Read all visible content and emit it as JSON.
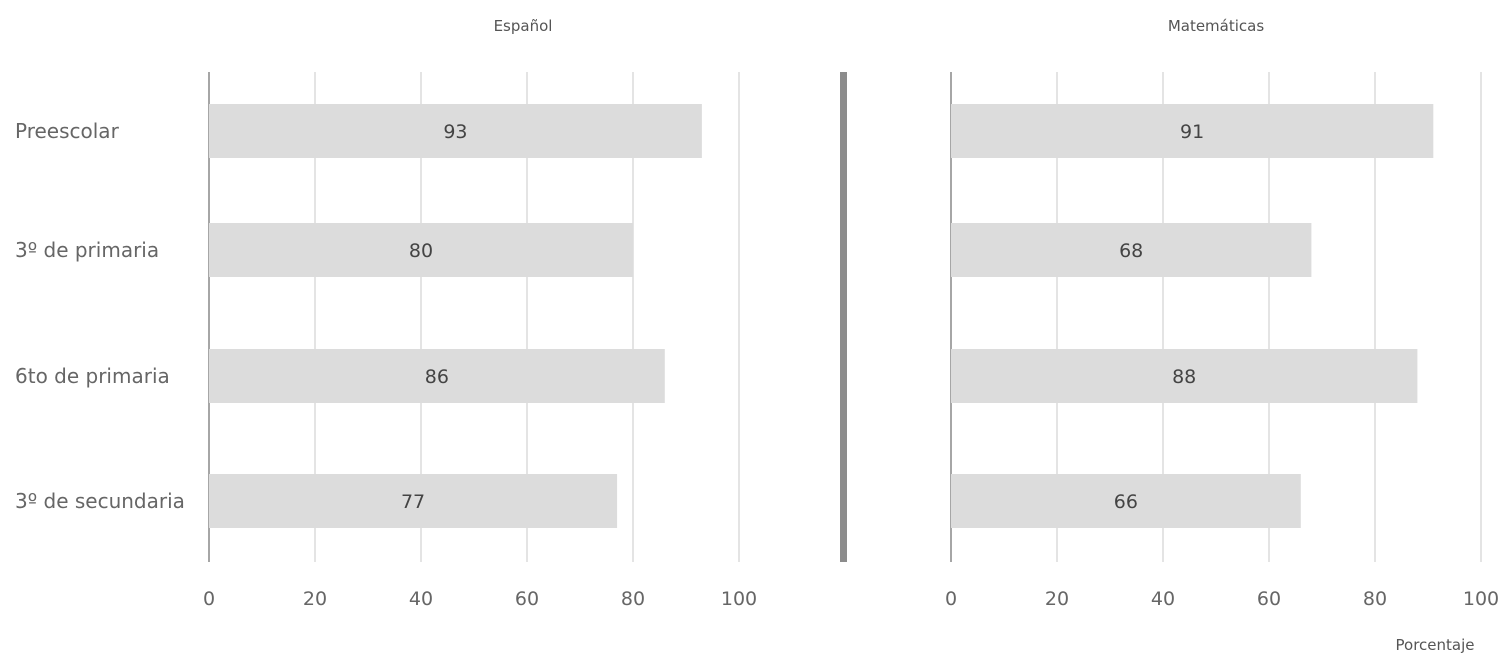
{
  "chart_data": [
    {
      "type": "bar",
      "orientation": "horizontal",
      "title": "Español",
      "categories": [
        "Preescolar",
        "3º de primaria",
        "6to de primaria",
        "3º de secundaria"
      ],
      "values": [
        93,
        80,
        86,
        77
      ],
      "data_labels": [
        "93",
        "80",
        "86",
        "77"
      ],
      "xlim": [
        0,
        100
      ],
      "xticks": [
        "0",
        "20",
        "40",
        "60",
        "80",
        "100"
      ],
      "grid": "vertical",
      "bar_color": "#dcdcdc"
    },
    {
      "type": "bar",
      "orientation": "horizontal",
      "title": "Matemáticas",
      "categories": [
        "Preescolar",
        "3º de primaria",
        "6to de primaria",
        "3º de secundaria"
      ],
      "values": [
        91,
        68,
        88,
        66
      ],
      "data_labels": [
        "91",
        "68",
        "88",
        "66"
      ],
      "xlim": [
        0,
        100
      ],
      "xticks": [
        "0",
        "20",
        "40",
        "60",
        "80",
        "100"
      ],
      "xlabel": "Porcentaje",
      "grid": "vertical",
      "bar_color": "#dcdcdc"
    }
  ],
  "colors": {
    "grid": "#c8c8c8",
    "axis": "#888888",
    "divider": "#8c8c8c"
  }
}
